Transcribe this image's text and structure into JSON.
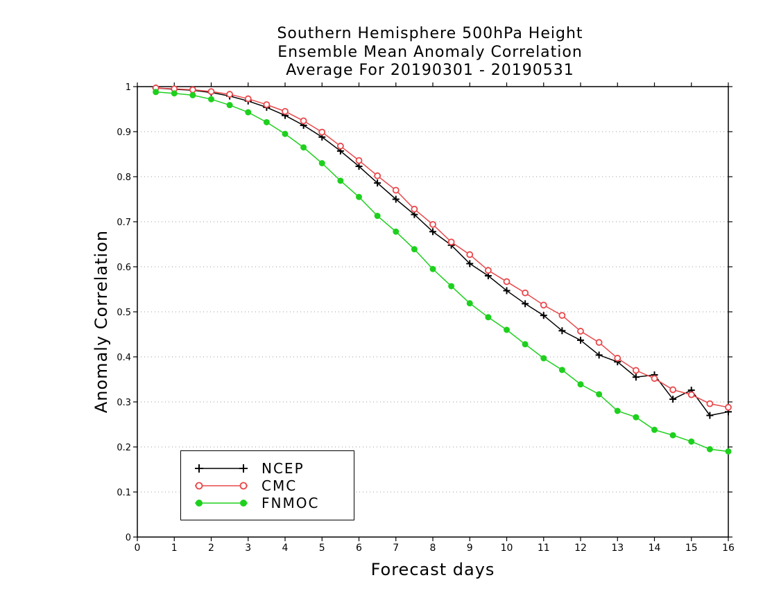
{
  "chart_data": {
    "type": "line",
    "title": [
      "Southern Hemisphere 500hPa Height",
      "Ensemble Mean Anomaly Correlation",
      "Average For 20190301 - 20190531"
    ],
    "xlabel": "Forecast days",
    "ylabel": "Anomaly Correlation",
    "xlim": [
      0,
      16
    ],
    "ylim": [
      0,
      1
    ],
    "xticks": [
      "0",
      "1",
      "2",
      "3",
      "4",
      "5",
      "6",
      "7",
      "8",
      "9",
      "10",
      "11",
      "12",
      "13",
      "14",
      "15",
      "16"
    ],
    "yticks": [
      "0",
      "0.1",
      "0.2",
      "0.3",
      "0.4",
      "0.5",
      "0.6",
      "0.7",
      "0.8",
      "0.9",
      "1"
    ],
    "grid": true,
    "legend_position": "bottom-left",
    "x": [
      0.5,
      1.0,
      1.5,
      2.0,
      2.5,
      3.0,
      3.5,
      4.0,
      4.5,
      5.0,
      5.5,
      6.0,
      6.5,
      7.0,
      7.5,
      8.0,
      8.5,
      9.0,
      9.5,
      10.0,
      10.5,
      11.0,
      11.5,
      12.0,
      12.5,
      13.0,
      13.5,
      14.0,
      14.5,
      15.0,
      15.5,
      16.0
    ],
    "series": [
      {
        "name": "NCEP",
        "color": "#000000",
        "marker": "plus",
        "values": [
          0.997,
          0.994,
          0.992,
          0.987,
          0.979,
          0.968,
          0.954,
          0.936,
          0.914,
          0.888,
          0.857,
          0.823,
          0.786,
          0.75,
          0.716,
          0.678,
          0.648,
          0.607,
          0.58,
          0.547,
          0.518,
          0.492,
          0.458,
          0.437,
          0.404,
          0.389,
          0.355,
          0.36,
          0.306,
          0.326,
          0.27,
          0.278
        ]
      },
      {
        "name": "CMC",
        "color": "#e8474a",
        "marker": "open-circle",
        "values": [
          0.997,
          0.995,
          0.993,
          0.989,
          0.983,
          0.973,
          0.96,
          0.945,
          0.924,
          0.899,
          0.868,
          0.836,
          0.802,
          0.77,
          0.728,
          0.694,
          0.655,
          0.627,
          0.592,
          0.567,
          0.542,
          0.515,
          0.492,
          0.457,
          0.432,
          0.397,
          0.37,
          0.352,
          0.327,
          0.316,
          0.296,
          0.288
        ]
      },
      {
        "name": "FNMOC",
        "color": "#1ed01e",
        "marker": "filled-circle",
        "values": [
          0.988,
          0.985,
          0.981,
          0.972,
          0.959,
          0.943,
          0.921,
          0.895,
          0.865,
          0.83,
          0.791,
          0.755,
          0.713,
          0.678,
          0.639,
          0.595,
          0.557,
          0.519,
          0.488,
          0.46,
          0.428,
          0.397,
          0.371,
          0.339,
          0.317,
          0.28,
          0.266,
          0.238,
          0.226,
          0.212,
          0.195,
          0.19
        ]
      }
    ]
  }
}
